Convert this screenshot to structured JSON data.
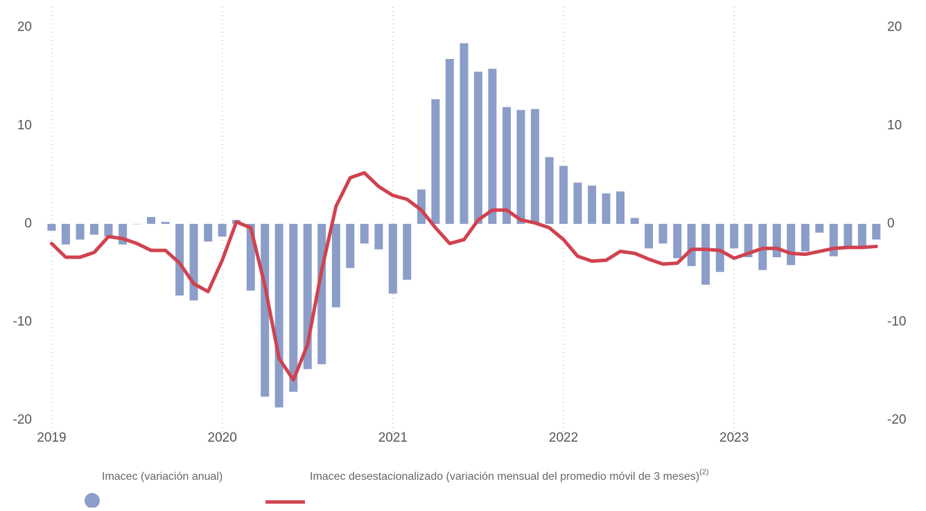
{
  "chart_data": {
    "type": "bar+line",
    "x": [
      2019,
      2019.083,
      2019.167,
      2019.25,
      2019.333,
      2019.417,
      2019.5,
      2019.583,
      2019.667,
      2019.75,
      2019.833,
      2019.917,
      2020,
      2020.083,
      2020.167,
      2020.25,
      2020.333,
      2020.417,
      2020.5,
      2020.583,
      2020.667,
      2020.75,
      2020.833,
      2020.917,
      2021,
      2021.083,
      2021.167,
      2021.25,
      2021.333,
      2021.417,
      2021.5,
      2021.583,
      2021.667,
      2021.75,
      2021.833,
      2021.917,
      2022,
      2022.083,
      2022.167,
      2022.25,
      2022.333,
      2022.417,
      2022.5,
      2022.583,
      2022.667,
      2022.75,
      2022.833,
      2022.917,
      2023,
      2023.083,
      2023.167,
      2023.25,
      2023.333,
      2023.417,
      2023.5,
      2023.583,
      2023.667,
      2023.75,
      2023.833
    ],
    "series": [
      {
        "name": "Imacec (variación anual)",
        "kind": "bar",
        "color": "#8b9dc8",
        "axis": "y",
        "values": [
          -0.7,
          -2.1,
          -1.6,
          -1.1,
          -1.3,
          -2.1,
          0.0,
          0.7,
          0.2,
          -7.3,
          -7.8,
          -1.8,
          -1.3,
          0.4,
          -6.8,
          -17.6,
          -18.7,
          -17.1,
          -14.8,
          -14.3,
          -8.5,
          -4.5,
          -2.0,
          -2.6,
          -7.1,
          -5.7,
          3.5,
          12.7,
          16.8,
          18.4,
          15.5,
          15.8,
          11.9,
          11.6,
          11.7,
          6.8,
          5.9,
          4.2,
          3.9,
          3.1,
          3.3,
          0.6,
          -2.5,
          -2.0,
          -3.5,
          -4.3,
          -6.2,
          -4.9,
          -2.5,
          -3.4,
          -4.7,
          -3.4,
          -4.2,
          -2.8,
          -0.9,
          -3.3,
          -2.4,
          -2.5,
          -1.6
        ]
      },
      {
        "name": "Imacec desestacionalizado (variación mensual del promedio móvil de 3 meses)",
        "note": "(2)",
        "kind": "line",
        "color": "#d0424f",
        "axis": "y2",
        "values": [
          -2.0,
          -3.4,
          -3.4,
          -2.9,
          -1.3,
          -1.5,
          -2.0,
          -2.7,
          -2.7,
          -4.0,
          -6.1,
          -6.9,
          -3.7,
          0.2,
          -0.4,
          -6.3,
          -13.7,
          -15.9,
          -12.3,
          -4.7,
          1.8,
          4.7,
          5.2,
          3.8,
          2.9,
          2.5,
          1.4,
          -0.4,
          -2.0,
          -1.6,
          0.4,
          1.4,
          1.4,
          0.4,
          0.1,
          -0.4,
          -1.6,
          -3.3,
          -3.8,
          -3.7,
          -2.8,
          -3.0,
          -3.6,
          -4.1,
          -4.0,
          -2.6,
          -2.6,
          -2.7,
          -3.5,
          -3.0,
          -2.5,
          -2.5,
          -3.0,
          -3.1,
          -2.8,
          -2.5,
          -2.4,
          -2.4,
          -2.3
        ]
      }
    ],
    "xlim": [
      2018.86,
      2023.97
    ],
    "xticks": [
      2019,
      2020,
      2021,
      2022,
      2023
    ],
    "ylim": [
      -22.4,
      22.1
    ],
    "yticks": [
      -20,
      -10,
      0,
      10,
      20
    ],
    "y2lim": [
      -22.4,
      22.1
    ],
    "y2ticks": [
      -20,
      -10,
      0,
      10,
      20
    ],
    "grid": "x"
  }
}
